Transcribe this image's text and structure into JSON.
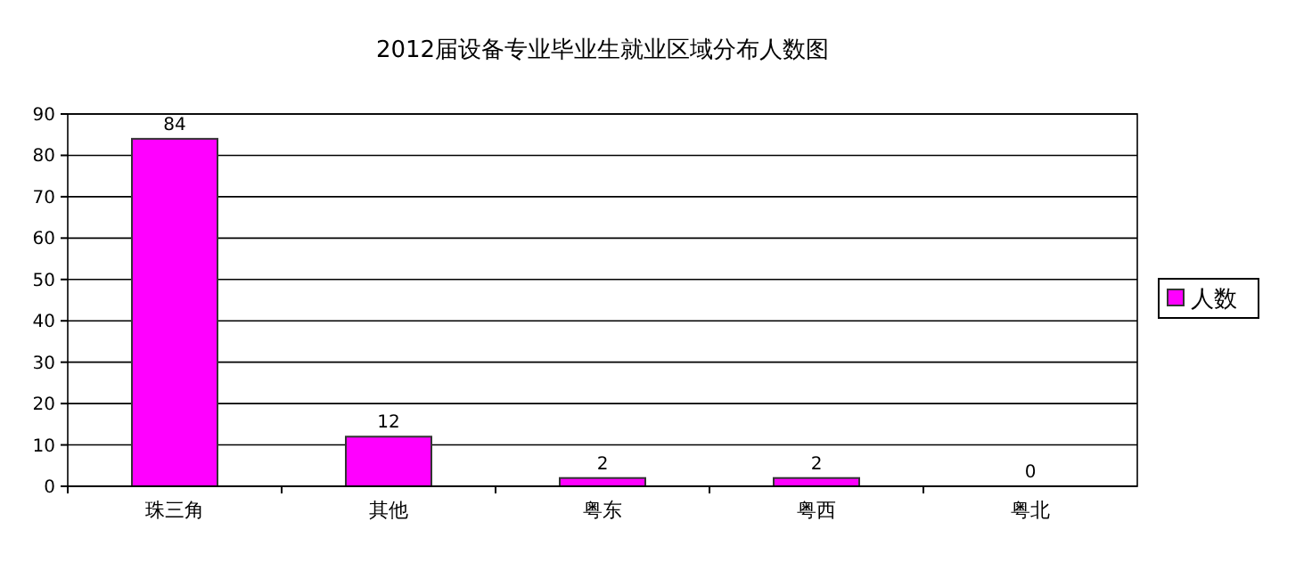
{
  "chart_data": {
    "type": "bar",
    "title": "2012届设备专业毕业生就业区域分布人数图",
    "categories": [
      "珠三角",
      "其他",
      "粤东",
      "粤西",
      "粤北"
    ],
    "series": [
      {
        "name": "人数",
        "color": "#ff00ff",
        "values": [
          84,
          12,
          2,
          2,
          0
        ]
      }
    ],
    "ylim": [
      0,
      90
    ],
    "yticks": [
      0,
      10,
      20,
      30,
      40,
      50,
      60,
      70,
      80,
      90
    ],
    "grid": "y",
    "legend": "right",
    "data_labels": true
  }
}
